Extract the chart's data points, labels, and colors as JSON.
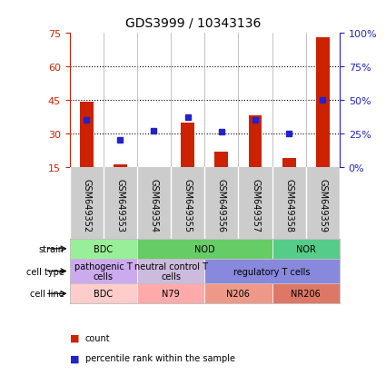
{
  "title": "GDS3999 / 10343136",
  "samples": [
    "GSM649352",
    "GSM649353",
    "GSM649354",
    "GSM649355",
    "GSM649356",
    "GSM649357",
    "GSM649358",
    "GSM649359"
  ],
  "counts": [
    44,
    16,
    15,
    35,
    22,
    38,
    19,
    73
  ],
  "percentile_ranks": [
    35,
    20,
    27,
    37,
    26,
    35,
    25,
    50
  ],
  "ylim_left": [
    15,
    75
  ],
  "ylim_right": [
    0,
    100
  ],
  "yticks_left": [
    15,
    30,
    45,
    60,
    75
  ],
  "yticks_right": [
    0,
    25,
    50,
    75,
    100
  ],
  "ytick_labels_right": [
    "0%",
    "25%",
    "50%",
    "75%",
    "100%"
  ],
  "bar_color": "#cc2200",
  "dot_color": "#2222cc",
  "grid_color": "#000000",
  "bg_color": "#ffffff",
  "strain_row": {
    "groups": [
      {
        "label": "BDC",
        "start": 0,
        "end": 2,
        "color": "#99ee99"
      },
      {
        "label": "NOD",
        "start": 2,
        "end": 6,
        "color": "#66cc66"
      },
      {
        "label": "NOR",
        "start": 6,
        "end": 8,
        "color": "#55cc88"
      }
    ]
  },
  "cell_type_row": {
    "groups": [
      {
        "label": "pathogenic T\ncells",
        "start": 0,
        "end": 2,
        "color": "#ccaaee"
      },
      {
        "label": "neutral control T\ncells",
        "start": 2,
        "end": 4,
        "color": "#ccbbdd"
      },
      {
        "label": "regulatory T cells",
        "start": 4,
        "end": 8,
        "color": "#8888dd"
      }
    ]
  },
  "cell_line_row": {
    "groups": [
      {
        "label": "BDC",
        "start": 0,
        "end": 2,
        "color": "#ffcccc"
      },
      {
        "label": "N79",
        "start": 2,
        "end": 4,
        "color": "#ffaaaa"
      },
      {
        "label": "N206",
        "start": 4,
        "end": 6,
        "color": "#ee9988"
      },
      {
        "label": "NR206",
        "start": 6,
        "end": 8,
        "color": "#dd7766"
      }
    ]
  },
  "row_labels": [
    "strain",
    "cell type",
    "cell line"
  ],
  "legend_items": [
    "count",
    "percentile rank within the sample"
  ],
  "left_axis_color": "#cc2200",
  "right_axis_color": "#2222cc",
  "sample_bg_color": "#cccccc"
}
